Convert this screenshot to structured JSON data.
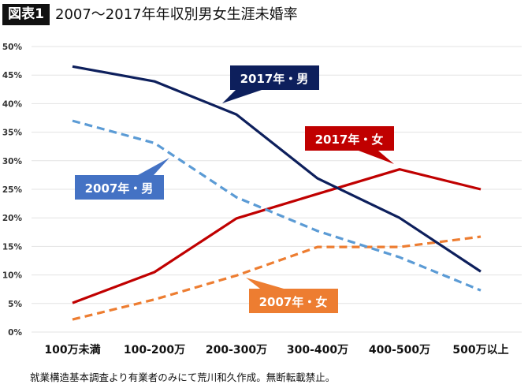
{
  "header": {
    "badge": "図表1",
    "title": "2007〜2017年年収別男女生涯未婚率"
  },
  "footnote": "就業構造基本調査より有業者のみにて荒川和久作成。無断転載禁止。",
  "chart_data": {
    "type": "line",
    "title": "2007〜2017年年収別男女生涯未婚率",
    "categories": [
      "100万未満",
      "100-200万",
      "200-300万",
      "300-400万",
      "400-500万",
      "500万以上"
    ],
    "yticks": [
      "0%",
      "5%",
      "10%",
      "15%",
      "20%",
      "25%",
      "30%",
      "35%",
      "40%",
      "45%",
      "50%"
    ],
    "ylim": [
      0,
      50
    ],
    "grid": true,
    "series": [
      {
        "name": "2017年・男",
        "color": "#0d1f5c",
        "dashed": false,
        "values": [
          46.5,
          43.9,
          38.1,
          26.9,
          20.0,
          10.6
        ]
      },
      {
        "name": "2007年・男",
        "color": "#5b9bd5",
        "dashed": true,
        "values": [
          37.0,
          33.1,
          23.6,
          17.7,
          13.1,
          7.3
        ]
      },
      {
        "name": "2017年・女",
        "color": "#c00000",
        "dashed": false,
        "values": [
          5.1,
          10.5,
          19.9,
          24.2,
          28.5,
          25.0
        ]
      },
      {
        "name": "2007年・女",
        "color": "#ed7d31",
        "dashed": true,
        "values": [
          2.2,
          5.7,
          9.9,
          14.9,
          14.9,
          16.7
        ]
      }
    ],
    "callout_colors": {
      "2017年・男": "#0d1f5c",
      "2007年・男": "#4472c4",
      "2017年・女": "#c00000",
      "2007年・女": "#ed7d31"
    }
  }
}
